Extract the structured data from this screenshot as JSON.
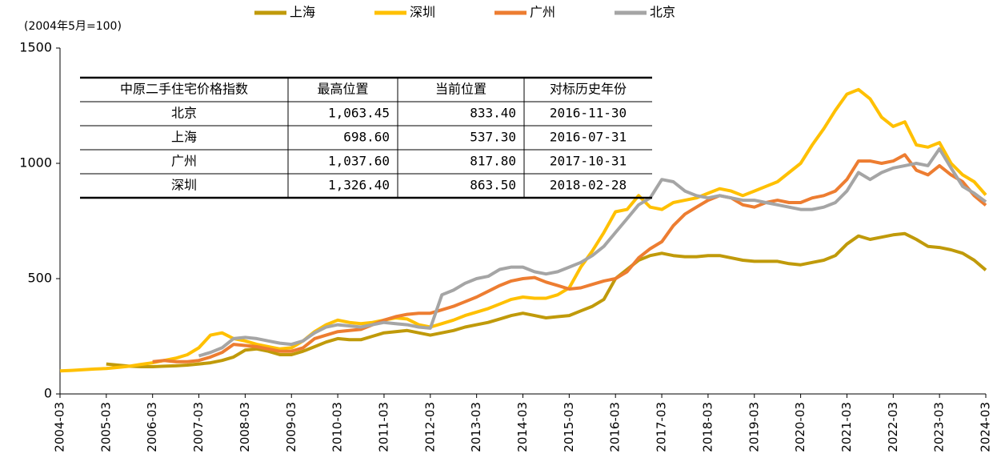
{
  "chart_data": {
    "type": "line",
    "subtitle": "(2004年5月=100)",
    "x": [
      "2004-03",
      "2004-06",
      "2004-09",
      "2004-12",
      "2005-03",
      "2005-06",
      "2005-09",
      "2005-12",
      "2006-03",
      "2006-06",
      "2006-09",
      "2006-12",
      "2007-03",
      "2007-06",
      "2007-09",
      "2007-12",
      "2008-03",
      "2008-06",
      "2008-09",
      "2008-12",
      "2009-03",
      "2009-06",
      "2009-09",
      "2009-12",
      "2010-03",
      "2010-06",
      "2010-09",
      "2010-12",
      "2011-03",
      "2011-06",
      "2011-09",
      "2011-12",
      "2012-03",
      "2012-06",
      "2012-09",
      "2012-12",
      "2013-03",
      "2013-06",
      "2013-09",
      "2013-12",
      "2014-03",
      "2014-06",
      "2014-09",
      "2014-12",
      "2015-03",
      "2015-06",
      "2015-09",
      "2015-12",
      "2016-03",
      "2016-06",
      "2016-09",
      "2016-12",
      "2017-03",
      "2017-06",
      "2017-09",
      "2017-12",
      "2018-03",
      "2018-06",
      "2018-09",
      "2018-12",
      "2019-03",
      "2019-06",
      "2019-09",
      "2019-12",
      "2020-03",
      "2020-06",
      "2020-09",
      "2020-12",
      "2021-03",
      "2021-06",
      "2021-09",
      "2021-12",
      "2022-03",
      "2022-06",
      "2022-09",
      "2022-12",
      "2023-03",
      "2023-06",
      "2023-09",
      "2023-12",
      "2024-03"
    ],
    "xticks_every": 4,
    "series": [
      {
        "name": "上海",
        "color": "#c09a0a",
        "values": [
          null,
          null,
          null,
          null,
          130,
          125,
          120,
          118,
          118,
          120,
          122,
          125,
          130,
          135,
          145,
          160,
          190,
          195,
          185,
          170,
          170,
          185,
          205,
          225,
          240,
          235,
          235,
          250,
          265,
          270,
          275,
          265,
          255,
          265,
          275,
          290,
          300,
          310,
          325,
          340,
          350,
          340,
          330,
          335,
          340,
          360,
          380,
          410,
          500,
          540,
          580,
          600,
          610,
          600,
          595,
          595,
          600,
          600,
          590,
          580,
          575,
          575,
          575,
          565,
          560,
          570,
          580,
          600,
          650,
          685,
          670,
          680,
          690,
          695,
          670,
          640,
          635,
          625,
          610,
          580,
          537
        ]
      },
      {
        "name": "深圳",
        "color": "#ffc000",
        "values": [
          100,
          102,
          105,
          108,
          110,
          115,
          120,
          128,
          135,
          145,
          155,
          170,
          200,
          255,
          265,
          240,
          230,
          215,
          205,
          195,
          200,
          230,
          270,
          300,
          320,
          310,
          305,
          310,
          320,
          330,
          325,
          300,
          290,
          305,
          320,
          340,
          355,
          370,
          390,
          410,
          420,
          415,
          415,
          430,
          460,
          550,
          620,
          700,
          790,
          800,
          860,
          810,
          800,
          830,
          840,
          850,
          870,
          890,
          880,
          860,
          880,
          900,
          920,
          960,
          1000,
          1080,
          1150,
          1230,
          1300,
          1320,
          1280,
          1200,
          1160,
          1180,
          1080,
          1070,
          1090,
          1000,
          950,
          920,
          863
        ]
      },
      {
        "name": "广州",
        "color": "#ed7d31",
        "values": [
          null,
          null,
          null,
          null,
          null,
          null,
          null,
          null,
          140,
          145,
          140,
          140,
          145,
          160,
          180,
          215,
          210,
          205,
          195,
          185,
          185,
          200,
          240,
          255,
          270,
          275,
          280,
          300,
          320,
          335,
          345,
          350,
          350,
          365,
          380,
          400,
          420,
          445,
          470,
          490,
          500,
          505,
          485,
          470,
          455,
          460,
          475,
          490,
          500,
          530,
          590,
          630,
          660,
          730,
          780,
          810,
          840,
          860,
          850,
          820,
          810,
          830,
          840,
          830,
          830,
          850,
          860,
          880,
          930,
          1010,
          1010,
          1000,
          1010,
          1037,
          970,
          950,
          990,
          950,
          920,
          860,
          818
        ]
      },
      {
        "name": "北京",
        "color": "#a5a5a5",
        "values": [
          null,
          null,
          null,
          null,
          null,
          null,
          null,
          null,
          null,
          null,
          null,
          null,
          165,
          180,
          200,
          240,
          245,
          240,
          230,
          220,
          215,
          230,
          265,
          290,
          300,
          295,
          290,
          300,
          310,
          305,
          300,
          290,
          285,
          430,
          450,
          480,
          500,
          510,
          540,
          550,
          550,
          530,
          520,
          530,
          550,
          570,
          600,
          640,
          700,
          760,
          820,
          850,
          930,
          920,
          880,
          860,
          850,
          860,
          850,
          840,
          840,
          830,
          820,
          810,
          800,
          800,
          810,
          830,
          880,
          960,
          930,
          960,
          980,
          990,
          1000,
          990,
          1063,
          980,
          900,
          870,
          833
        ]
      }
    ],
    "ylim": [
      0,
      1500
    ],
    "yticks": [
      0,
      500,
      1000,
      1500
    ],
    "table": {
      "columns": [
        "中原二手住宅价格指数",
        "最高位置",
        "当前位置",
        "对标历史年份"
      ],
      "rows": [
        [
          "北京",
          "1,063.45",
          "833.40",
          "2016-11-30"
        ],
        [
          "上海",
          "698.60",
          "537.30",
          "2016-07-31"
        ],
        [
          "广州",
          "1,037.60",
          "817.80",
          "2017-10-31"
        ],
        [
          "深圳",
          "1,326.40",
          "863.50",
          "2018-02-28"
        ]
      ]
    }
  }
}
